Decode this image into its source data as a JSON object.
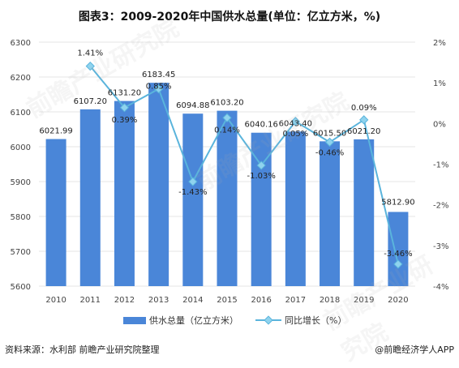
{
  "title": "图表3：2009-2020年中国供水总量(单位：亿立方米，%)",
  "source": "资料来源：水利部 前瞻产业研究院整理",
  "brand": "@前瞻经济学人APP",
  "watermark": "前瞻产业研究院",
  "colors": {
    "bar": "#4a86d8",
    "line": "#5ab4dc",
    "marker": "#8fd3ee",
    "grid": "#e6e6e6"
  },
  "chart_data": {
    "type": "bar",
    "categories": [
      "2010",
      "2011",
      "2012",
      "2013",
      "2014",
      "2015",
      "2016",
      "2017",
      "2018",
      "2019",
      "2020"
    ],
    "series": [
      {
        "name": "供水总量（亿立方米）",
        "type": "bar",
        "axis": "left",
        "values": [
          6021.99,
          6107.2,
          6131.2,
          6183.45,
          6094.88,
          6103.2,
          6040.16,
          6043.4,
          6015.5,
          6021.2,
          5812.9
        ],
        "labels": [
          "6021.99",
          "6107.20",
          "6131.20",
          "6183.45",
          "6094.88",
          "6103.20",
          "6040.16",
          "6043.40",
          "6015.50",
          "6021.20",
          "5812.90"
        ]
      },
      {
        "name": "同比增长（%）",
        "type": "line",
        "axis": "right",
        "values": [
          null,
          1.41,
          0.39,
          0.85,
          -1.43,
          0.14,
          -1.03,
          0.05,
          -0.46,
          0.09,
          -3.46
        ],
        "labels": [
          "",
          "1.41%",
          "0.39%",
          "0.85%",
          "-1.43%",
          "0.14%",
          "-1.03%",
          "0.05%",
          "-0.46%",
          "0.09%",
          "-3.46%"
        ]
      }
    ],
    "y_left": {
      "min": 5600,
      "max": 6300,
      "ticks": [
        "5600",
        "5700",
        "5800",
        "5900",
        "6000",
        "6100",
        "6200",
        "6300"
      ]
    },
    "y_right": {
      "min": -4,
      "max": 2,
      "ticks": [
        "-4%",
        "-3%",
        "-2%",
        "-1%",
        "0%",
        "1%",
        "2%"
      ]
    },
    "grid": true,
    "legend": "bottom"
  }
}
